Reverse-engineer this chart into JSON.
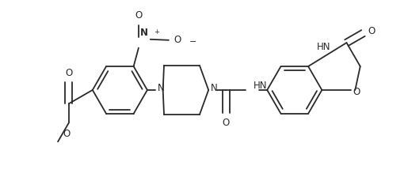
{
  "background": "#ffffff",
  "line_color": "#2a2a2a",
  "line_width": 1.3,
  "figsize": [
    5.15,
    2.19
  ],
  "dpi": 100,
  "xlim": [
    0,
    10.3
  ],
  "ylim": [
    0,
    4.38
  ]
}
